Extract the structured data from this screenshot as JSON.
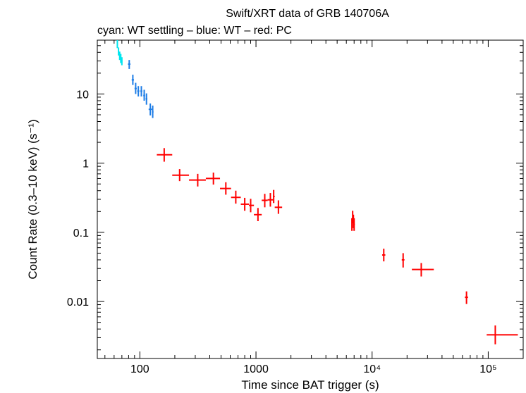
{
  "chart_data": {
    "type": "scatter",
    "title": "Swift/XRT data of GRB 140706A",
    "subtitle": "cyan: WT settling – blue: WT – red: PC",
    "xlabel": "Time since BAT trigger (s)",
    "ylabel": "Count Rate (0.3–10 keV) (s⁻¹)",
    "xscale": "log",
    "yscale": "log",
    "xlim": [
      43,
      200000
    ],
    "ylim": [
      0.0015,
      60
    ],
    "x_ticks": [
      {
        "value": 100,
        "label": "100"
      },
      {
        "value": 1000,
        "label": "1000"
      },
      {
        "value": 10000,
        "label": "10⁴"
      },
      {
        "value": 100000,
        "label": "10⁵"
      }
    ],
    "y_ticks": [
      {
        "value": 0.01,
        "label": "0.01"
      },
      {
        "value": 0.1,
        "label": "0.1"
      },
      {
        "value": 1,
        "label": "1"
      },
      {
        "value": 10,
        "label": "10"
      }
    ],
    "series": [
      {
        "name": "WT settling",
        "color": "#00e5ee",
        "points": [
          {
            "x": 64,
            "xlo": 63.2,
            "xhi": 64.8,
            "y": 52,
            "ylo": 46,
            "yhi": 60
          },
          {
            "x": 65.5,
            "xlo": 64.8,
            "xhi": 66.2,
            "y": 41,
            "ylo": 36,
            "yhi": 47
          },
          {
            "x": 67,
            "xlo": 66.2,
            "xhi": 67.8,
            "y": 36,
            "ylo": 31,
            "yhi": 41
          },
          {
            "x": 68.5,
            "xlo": 67.8,
            "xhi": 69.2,
            "y": 33,
            "ylo": 28,
            "yhi": 38
          },
          {
            "x": 70,
            "xlo": 69.2,
            "xhi": 70.8,
            "y": 30,
            "ylo": 26,
            "yhi": 34
          }
        ]
      },
      {
        "name": "WT",
        "color": "#1e7de6",
        "points": [
          {
            "x": 81,
            "xlo": 79,
            "xhi": 83,
            "y": 27,
            "ylo": 23,
            "yhi": 31
          },
          {
            "x": 87,
            "xlo": 85,
            "xhi": 89,
            "y": 16,
            "ylo": 13.5,
            "yhi": 19
          },
          {
            "x": 92,
            "xlo": 90,
            "xhi": 94,
            "y": 12,
            "ylo": 10,
            "yhi": 14.5
          },
          {
            "x": 97,
            "xlo": 95,
            "xhi": 99,
            "y": 11,
            "ylo": 9.2,
            "yhi": 13
          },
          {
            "x": 103,
            "xlo": 101,
            "xhi": 105,
            "y": 11,
            "ylo": 9.2,
            "yhi": 13
          },
          {
            "x": 109,
            "xlo": 107,
            "xhi": 111,
            "y": 9.5,
            "ylo": 8,
            "yhi": 11.5
          },
          {
            "x": 114,
            "xlo": 112,
            "xhi": 116,
            "y": 8.5,
            "ylo": 7,
            "yhi": 10.2
          },
          {
            "x": 123,
            "xlo": 119,
            "xhi": 127,
            "y": 6,
            "ylo": 4.9,
            "yhi": 7.3
          },
          {
            "x": 129,
            "xlo": 127,
            "xhi": 131,
            "y": 5.5,
            "ylo": 4.5,
            "yhi": 6.8
          }
        ]
      },
      {
        "name": "PC",
        "color": "#ff0000",
        "points": [
          {
            "x": 162,
            "xlo": 140,
            "xhi": 190,
            "y": 1.32,
            "ylo": 1.05,
            "yhi": 1.65
          },
          {
            "x": 220,
            "xlo": 190,
            "xhi": 265,
            "y": 0.67,
            "ylo": 0.55,
            "yhi": 0.82
          },
          {
            "x": 315,
            "xlo": 265,
            "xhi": 370,
            "y": 0.57,
            "ylo": 0.46,
            "yhi": 0.7
          },
          {
            "x": 430,
            "xlo": 370,
            "xhi": 490,
            "y": 0.6,
            "ylo": 0.49,
            "yhi": 0.73
          },
          {
            "x": 550,
            "xlo": 490,
            "xhi": 610,
            "y": 0.43,
            "ylo": 0.35,
            "yhi": 0.53
          },
          {
            "x": 670,
            "xlo": 610,
            "xhi": 740,
            "y": 0.32,
            "ylo": 0.26,
            "yhi": 0.4
          },
          {
            "x": 800,
            "xlo": 740,
            "xhi": 870,
            "y": 0.255,
            "ylo": 0.205,
            "yhi": 0.315
          },
          {
            "x": 900,
            "xlo": 870,
            "xhi": 960,
            "y": 0.245,
            "ylo": 0.195,
            "yhi": 0.305
          },
          {
            "x": 1040,
            "xlo": 960,
            "xhi": 1120,
            "y": 0.18,
            "ylo": 0.145,
            "yhi": 0.225
          },
          {
            "x": 1190,
            "xlo": 1120,
            "xhi": 1260,
            "y": 0.29,
            "ylo": 0.23,
            "yhi": 0.36
          },
          {
            "x": 1330,
            "xlo": 1260,
            "xhi": 1400,
            "y": 0.295,
            "ylo": 0.235,
            "yhi": 0.37
          },
          {
            "x": 1420,
            "xlo": 1400,
            "xhi": 1450,
            "y": 0.33,
            "ylo": 0.265,
            "yhi": 0.41
          },
          {
            "x": 1560,
            "xlo": 1450,
            "xhi": 1680,
            "y": 0.23,
            "ylo": 0.185,
            "yhi": 0.29
          },
          {
            "x": 6700,
            "xlo": 6650,
            "xhi": 6750,
            "y": 0.13,
            "ylo": 0.105,
            "yhi": 0.16
          },
          {
            "x": 6800,
            "xlo": 6750,
            "xhi": 6850,
            "y": 0.165,
            "ylo": 0.135,
            "yhi": 0.205
          },
          {
            "x": 6900,
            "xlo": 6850,
            "xhi": 6950,
            "y": 0.145,
            "ylo": 0.115,
            "yhi": 0.18
          },
          {
            "x": 7000,
            "xlo": 6950,
            "xhi": 7100,
            "y": 0.13,
            "ylo": 0.105,
            "yhi": 0.16
          },
          {
            "x": 12600,
            "xlo": 12200,
            "xhi": 13000,
            "y": 0.047,
            "ylo": 0.038,
            "yhi": 0.058
          },
          {
            "x": 18500,
            "xlo": 18000,
            "xhi": 19000,
            "y": 0.04,
            "ylo": 0.031,
            "yhi": 0.05
          },
          {
            "x": 26500,
            "xlo": 22000,
            "xhi": 34000,
            "y": 0.029,
            "ylo": 0.023,
            "yhi": 0.036
          },
          {
            "x": 65000,
            "xlo": 63000,
            "xhi": 67000,
            "y": 0.0115,
            "ylo": 0.0092,
            "yhi": 0.014
          },
          {
            "x": 115000,
            "xlo": 97000,
            "xhi": 180000,
            "y": 0.0033,
            "ylo": 0.0024,
            "yhi": 0.0045
          }
        ]
      }
    ]
  }
}
